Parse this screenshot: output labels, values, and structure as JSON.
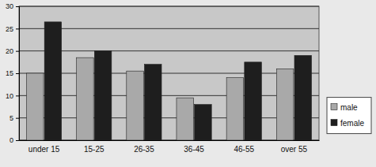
{
  "chart_data": {
    "type": "bar",
    "categories": [
      "under 15",
      "15-25",
      "26-35",
      "36-45",
      "46-55",
      "over 55"
    ],
    "series": [
      {
        "name": "male",
        "color": "#a9a9a9",
        "values": [
          15,
          18.5,
          15.5,
          9.5,
          14,
          16
        ]
      },
      {
        "name": "female",
        "color": "#1e1e1e",
        "values": [
          26.5,
          20,
          17,
          8,
          17.5,
          19
        ]
      }
    ],
    "ylim": [
      0,
      30
    ],
    "yticks": [
      0,
      5,
      10,
      15,
      20,
      25,
      30
    ],
    "grid": true,
    "legend": "right"
  }
}
